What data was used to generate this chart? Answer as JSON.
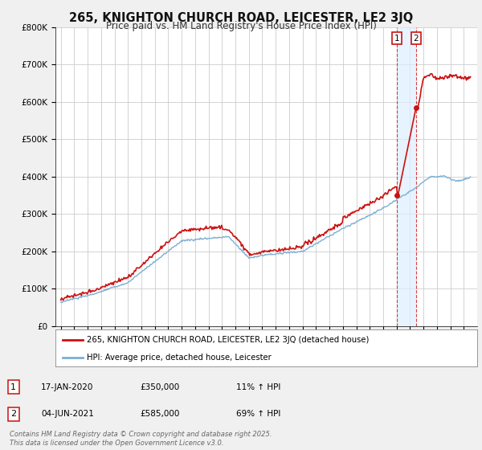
{
  "title": "265, KNIGHTON CHURCH ROAD, LEICESTER, LE2 3JQ",
  "subtitle": "Price paid vs. HM Land Registry's House Price Index (HPI)",
  "ylim": [
    0,
    800000
  ],
  "yticks": [
    0,
    100000,
    200000,
    300000,
    400000,
    500000,
    600000,
    700000,
    800000
  ],
  "ytick_labels": [
    "£0",
    "£100K",
    "£200K",
    "£300K",
    "£400K",
    "£500K",
    "£600K",
    "£700K",
    "£800K"
  ],
  "hpi_color": "#7bafd4",
  "price_color": "#cc1111",
  "sale1_year": 2020.04,
  "sale2_year": 2021.45,
  "sale1_price": 350000,
  "sale2_price": 585000,
  "sale1_date_str": "17-JAN-2020",
  "sale2_date_str": "04-JUN-2021",
  "sale1_pct": "11% ↑ HPI",
  "sale2_pct": "69% ↑ HPI",
  "legend_label1": "265, KNIGHTON CHURCH ROAD, LEICESTER, LE2 3JQ (detached house)",
  "legend_label2": "HPI: Average price, detached house, Leicester",
  "footnote": "Contains HM Land Registry data © Crown copyright and database right 2025.\nThis data is licensed under the Open Government Licence v3.0.",
  "background_color": "#f0f0f0",
  "plot_bg_color": "#ffffff",
  "grid_color": "#cccccc",
  "shade_color": "#ddeeff",
  "title_fontsize": 10.5,
  "subtitle_fontsize": 8.5,
  "tick_fontsize": 7.5
}
